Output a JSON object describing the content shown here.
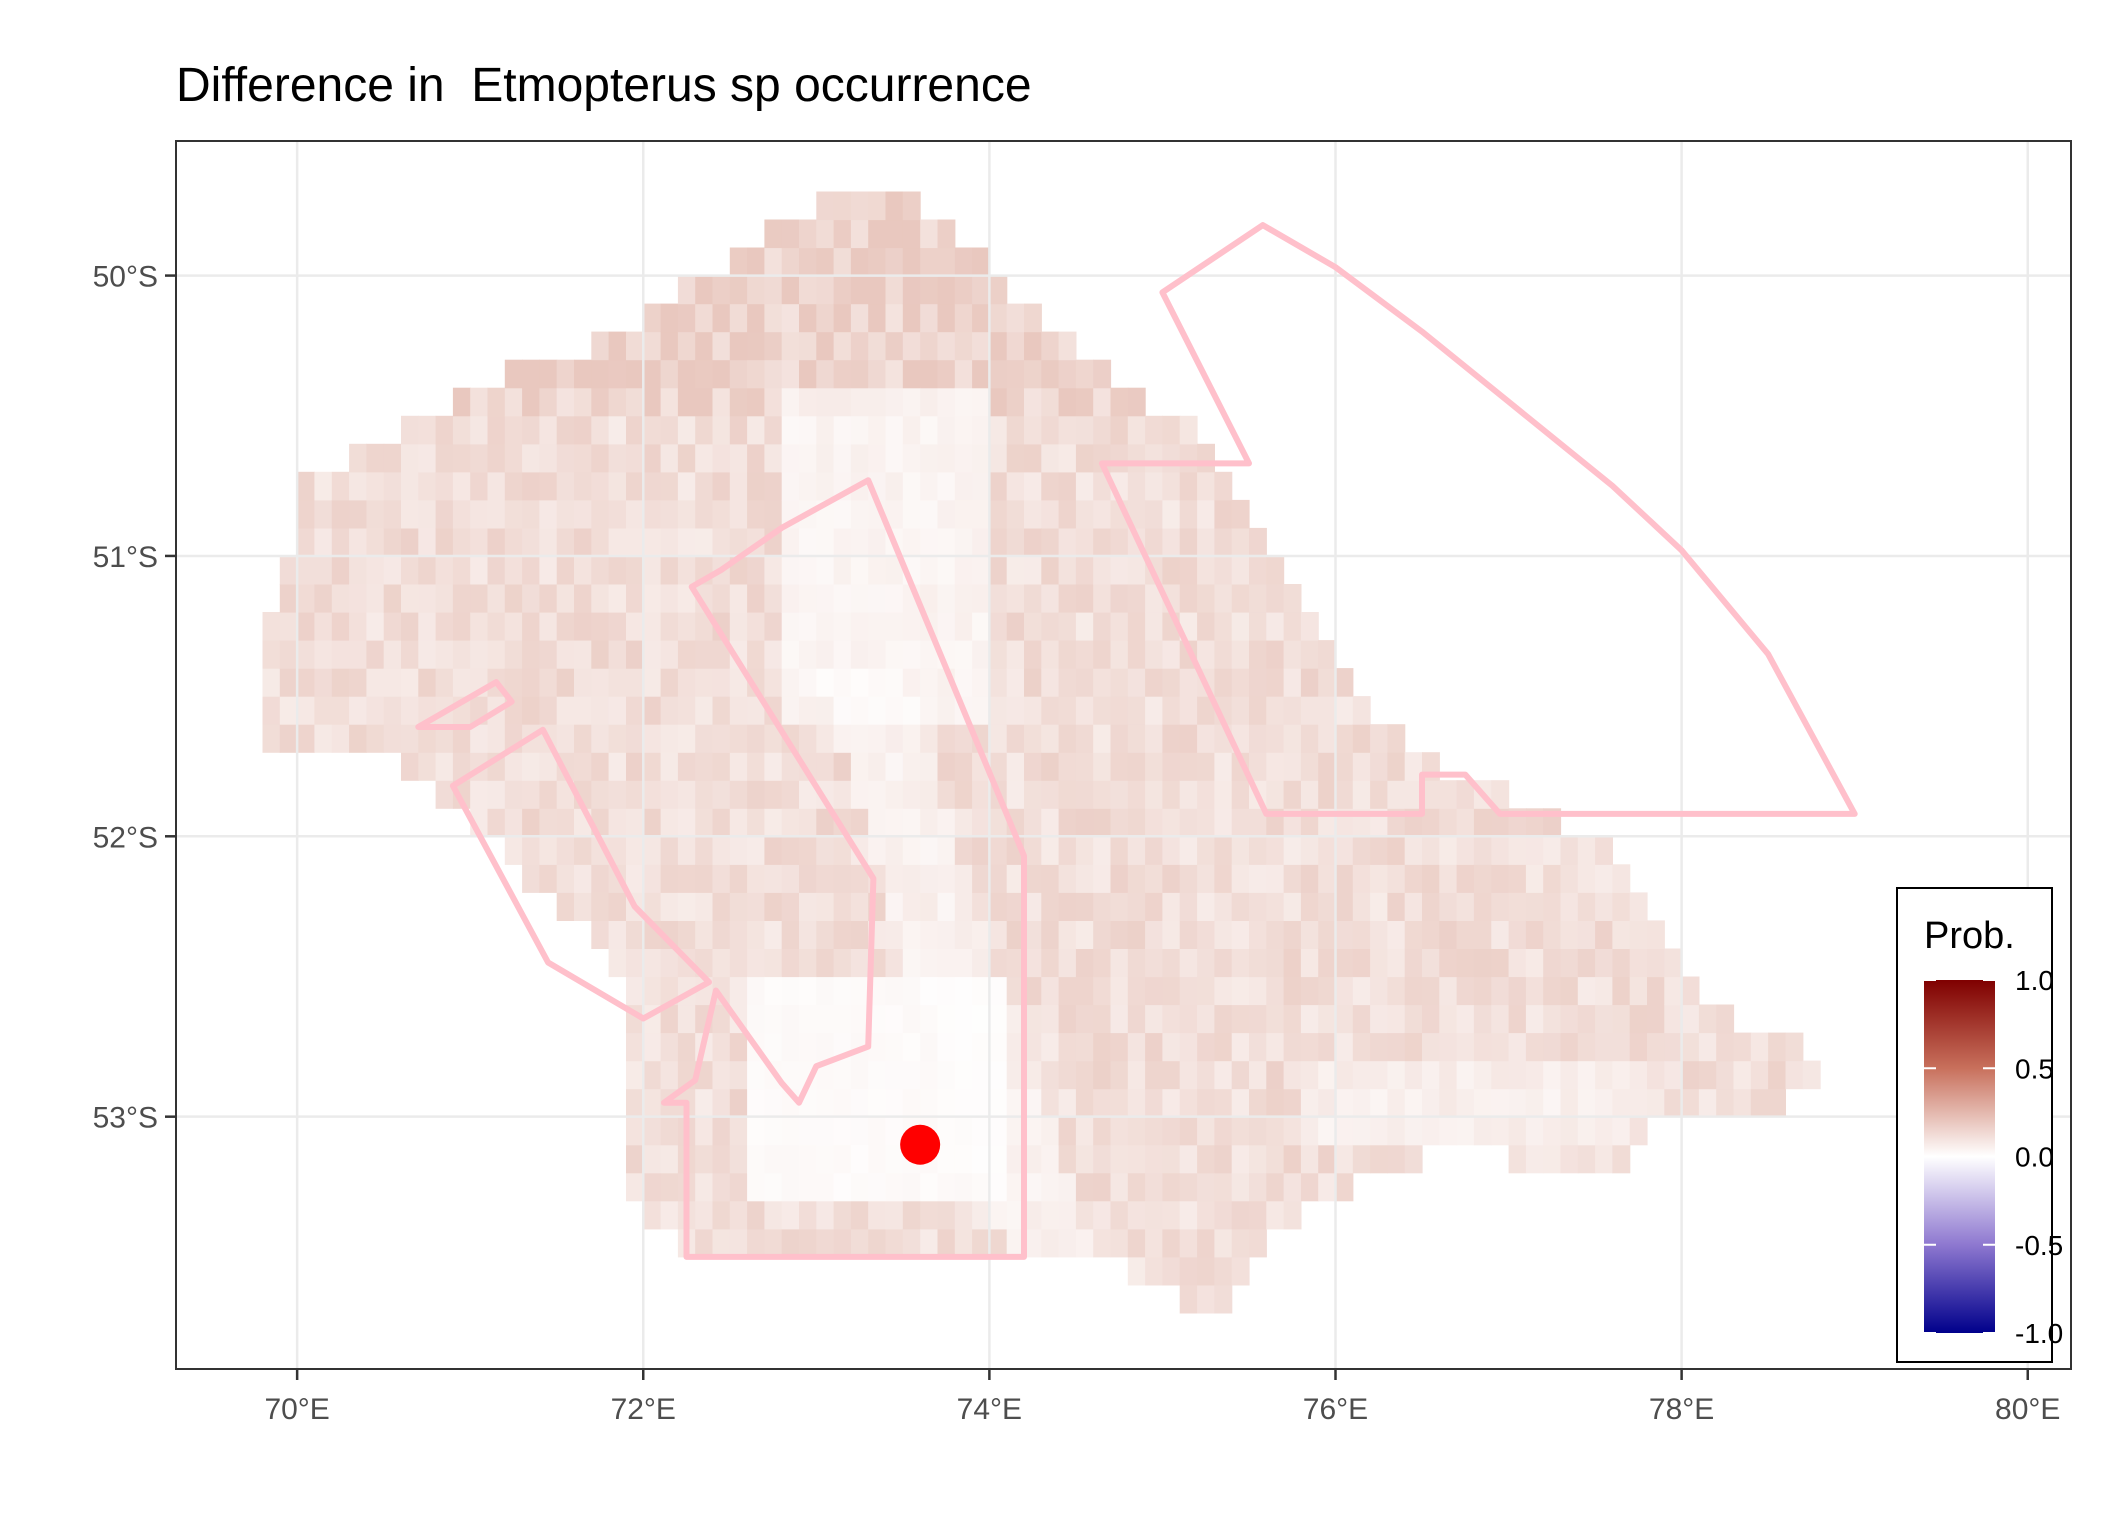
{
  "chart_data": {
    "type": "heatmap",
    "title": "Difference in  Etmopterus sp occurrence",
    "xlabel": "",
    "ylabel": "",
    "x_ticks": [
      "70°E",
      "72°E",
      "74°E",
      "76°E",
      "78°E",
      "80°E"
    ],
    "x_tick_values": [
      70,
      72,
      74,
      76,
      78,
      80
    ],
    "y_ticks": [
      "50°S",
      "51°S",
      "52°S",
      "53°S"
    ],
    "y_tick_values": [
      -50,
      -51,
      -52,
      -53
    ],
    "xlim": [
      69.3,
      80.25
    ],
    "ylim": [
      -53.9,
      -49.52
    ],
    "grid": true,
    "legend": {
      "title": "Prob.",
      "position": "right",
      "ticks": [
        "1.0",
        "0.5",
        "0.0",
        "-0.5",
        "-1.0"
      ],
      "tick_values": [
        1.0,
        0.5,
        0.0,
        -0.5,
        -1.0
      ],
      "colors": [
        "#7f0000",
        "#c8705c",
        "#ffffff",
        "#8e78d0",
        "#00008b"
      ]
    },
    "raster": {
      "cell_deg": 0.1,
      "value_range": [
        0.0,
        0.15
      ],
      "low_color": "#ffffff",
      "high_color": "#e9c8bf"
    },
    "polygons_color": "#ffc0cb",
    "polygons": [
      [
        [
          75.0,
          -50.06
        ],
        [
          75.58,
          -49.82
        ],
        [
          76.0,
          -49.97
        ],
        [
          76.5,
          -50.2
        ],
        [
          77.0,
          -50.45
        ],
        [
          77.6,
          -50.75
        ],
        [
          78.0,
          -50.98
        ],
        [
          78.5,
          -51.35
        ],
        [
          79.0,
          -51.92
        ],
        [
          76.95,
          -51.92
        ],
        [
          76.75,
          -51.78
        ],
        [
          76.5,
          -51.78
        ],
        [
          76.5,
          -51.92
        ],
        [
          75.6,
          -51.92
        ],
        [
          74.65,
          -50.67
        ],
        [
          75.5,
          -50.67
        ],
        [
          75.0,
          -50.06
        ]
      ],
      [
        [
          72.28,
          -51.11
        ],
        [
          72.45,
          -51.05
        ],
        [
          72.8,
          -50.9
        ],
        [
          73.3,
          -50.73
        ],
        [
          74.2,
          -52.07
        ],
        [
          74.2,
          -53.5
        ],
        [
          72.25,
          -53.5
        ],
        [
          72.25,
          -52.95
        ],
        [
          72.12,
          -52.95
        ],
        [
          72.3,
          -52.87
        ],
        [
          72.42,
          -52.55
        ],
        [
          72.8,
          -52.88
        ],
        [
          72.9,
          -52.95
        ],
        [
          73.0,
          -52.82
        ],
        [
          73.3,
          -52.75
        ],
        [
          73.33,
          -52.15
        ],
        [
          72.28,
          -51.11
        ]
      ],
      [
        [
          70.7,
          -51.61
        ],
        [
          71.15,
          -51.45
        ],
        [
          71.24,
          -51.52
        ],
        [
          71.0,
          -51.61
        ],
        [
          70.7,
          -51.61
        ]
      ],
      [
        [
          70.9,
          -51.82
        ],
        [
          71.42,
          -51.62
        ],
        [
          71.95,
          -52.25
        ],
        [
          72.38,
          -52.52
        ],
        [
          72.0,
          -52.65
        ],
        [
          71.45,
          -52.45
        ],
        [
          70.9,
          -51.82
        ]
      ]
    ],
    "points": [
      {
        "x": 73.6,
        "y": -53.1,
        "color": "#ff0000"
      }
    ]
  }
}
